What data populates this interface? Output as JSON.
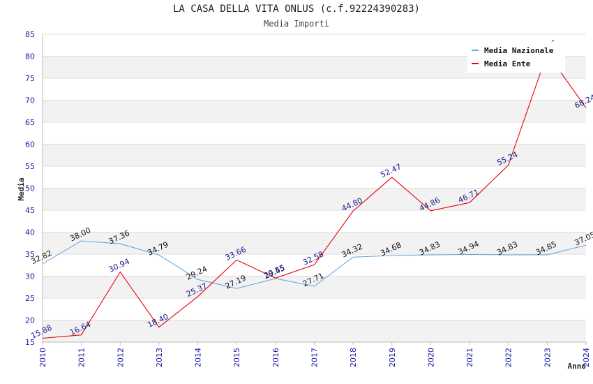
{
  "chart_data": {
    "type": "line",
    "title": "LA CASA DELLA VITA ONLUS (c.f.92224390283)",
    "subtitle": "Media Importi",
    "xlabel": "Anno",
    "ylabel": "Media",
    "ylim": [
      15,
      85
    ],
    "yticks": [
      15,
      20,
      25,
      30,
      35,
      40,
      45,
      50,
      55,
      60,
      65,
      70,
      75,
      80,
      85
    ],
    "categories": [
      "2010",
      "2011",
      "2012",
      "2013",
      "2014",
      "2015",
      "2016",
      "2017",
      "2018",
      "2019",
      "2020",
      "2021",
      "2022",
      "2023",
      "2024"
    ],
    "grid": "horizontal bands",
    "legend_position": "top-right",
    "series": [
      {
        "name": "Media Nazionale",
        "color": "#6fa8dc",
        "label_color": "#111111",
        "values": [
          32.82,
          38.0,
          37.36,
          34.79,
          29.24,
          27.19,
          29.45,
          27.71,
          34.32,
          34.68,
          34.83,
          34.94,
          34.83,
          34.85,
          37.05
        ]
      },
      {
        "name": "Media Ente",
        "color": "#e8000b",
        "label_color": "#1a1a8c",
        "values": [
          15.88,
          16.64,
          30.94,
          18.4,
          25.37,
          33.66,
          29.55,
          32.58,
          44.8,
          52.47,
          44.86,
          46.71,
          55.24,
          80.66,
          68.24
        ]
      }
    ]
  }
}
